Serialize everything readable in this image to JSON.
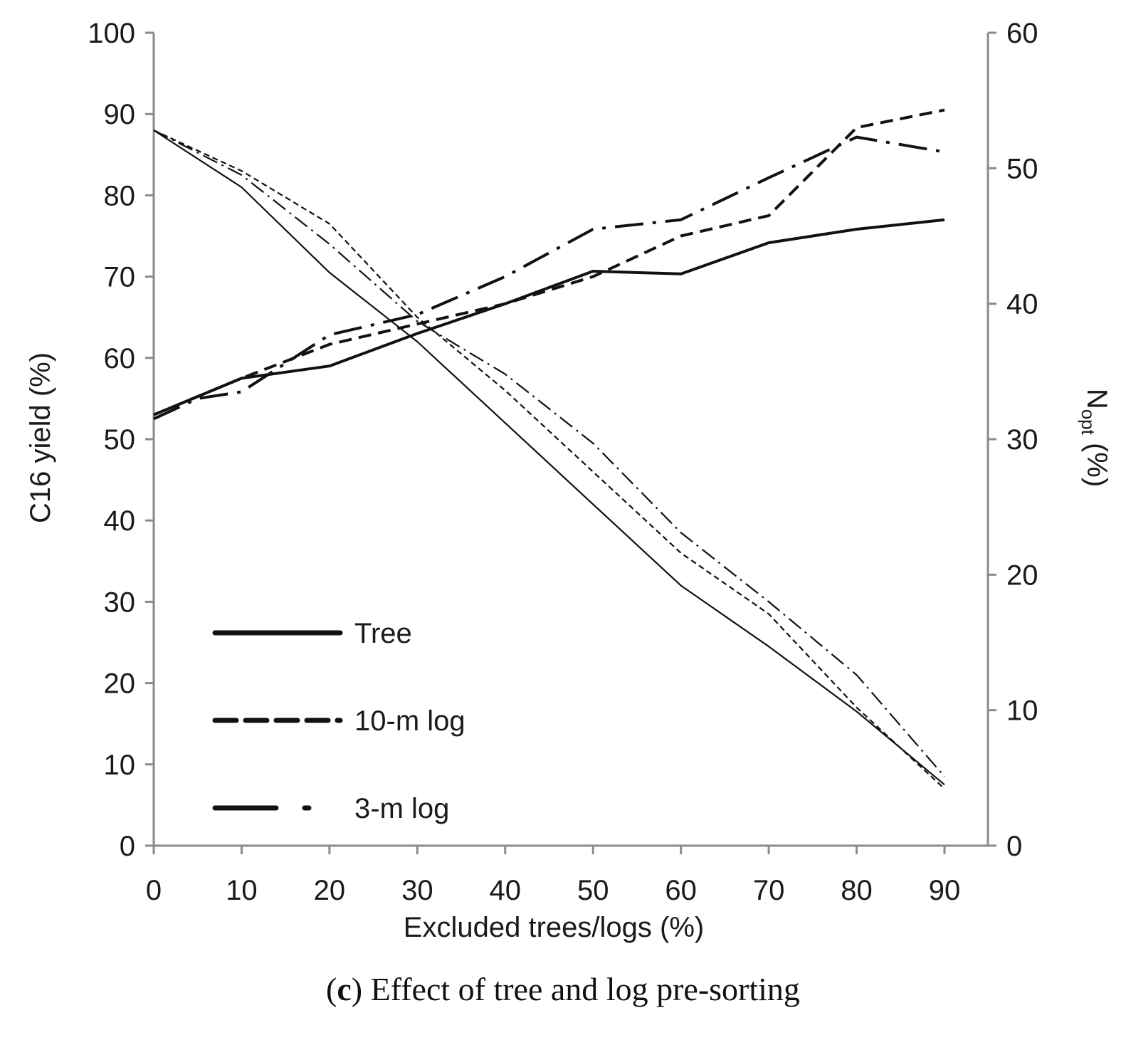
{
  "chart_data": {
    "type": "line",
    "xlabel": "Excluded trees/logs (%)",
    "ylabel": "C16 yield (%)",
    "y2label": {
      "main": "N",
      "sub": "opt",
      "suffix": " (%)"
    },
    "xlim": [
      0,
      90
    ],
    "xticks": [
      0,
      10,
      20,
      30,
      40,
      50,
      60,
      70,
      80,
      90
    ],
    "ylim": [
      0,
      100
    ],
    "yticks": [
      0,
      10,
      20,
      30,
      40,
      50,
      60,
      70,
      80,
      90,
      100
    ],
    "y2lim": [
      0,
      60
    ],
    "y2ticks": [
      0,
      10,
      20,
      30,
      40,
      50,
      60
    ],
    "grid": false,
    "legend_position": "bottom-left",
    "legend": [
      {
        "label": "Tree",
        "style": "solid"
      },
      {
        "label": "10-m log",
        "style": "dashed"
      },
      {
        "label": "3-m log",
        "style": "dash-dot"
      }
    ],
    "series": [
      {
        "name": "Tree",
        "axis": "left",
        "style": "solid",
        "x": [
          0,
          10,
          20,
          30,
          40,
          50,
          60,
          70,
          80,
          90
        ],
        "values": [
          88,
          81,
          70.5,
          62,
          52,
          42,
          32,
          24.5,
          16.5,
          7.5
        ]
      },
      {
        "name": "10-m log",
        "axis": "left",
        "style": "dashed",
        "x": [
          0,
          10,
          20,
          30,
          40,
          50,
          60,
          70,
          80,
          90
        ],
        "values": [
          88,
          83,
          76.5,
          65,
          56,
          46,
          36,
          28.5,
          17,
          7
        ]
      },
      {
        "name": "3-m log",
        "axis": "left",
        "style": "dash-dot",
        "x": [
          0,
          10,
          20,
          30,
          40,
          50,
          60,
          70,
          80,
          90
        ],
        "values": [
          88,
          82.5,
          74,
          64.5,
          58,
          49.5,
          38.5,
          30,
          21,
          8.5
        ]
      },
      {
        "name": "Tree",
        "axis": "right",
        "style": "solid",
        "x": [
          0,
          10,
          20,
          30,
          40,
          50,
          60,
          70,
          80,
          90
        ],
        "values": [
          31.8,
          34.5,
          35.4,
          37.8,
          40,
          42.4,
          42.2,
          44.5,
          45.5,
          46.2
        ]
      },
      {
        "name": "10-m log",
        "axis": "right",
        "style": "dashed",
        "x": [
          0,
          10,
          20,
          30,
          40,
          50,
          60,
          70,
          80,
          90
        ],
        "values": [
          31.8,
          34.5,
          37,
          38.5,
          40,
          42,
          45,
          46.5,
          53,
          54.3
        ]
      },
      {
        "name": "3-m log",
        "axis": "right",
        "style": "dash-dot",
        "x": [
          0,
          5,
          10,
          20,
          30,
          40,
          50,
          60,
          70,
          80,
          90
        ],
        "values": [
          31.5,
          33,
          33.5,
          37.7,
          39.2,
          42,
          45.5,
          46.2,
          49.3,
          52.3,
          51.2
        ]
      }
    ]
  },
  "caption": {
    "letter": "c",
    "text": " Effect of tree and log pre-sorting"
  }
}
